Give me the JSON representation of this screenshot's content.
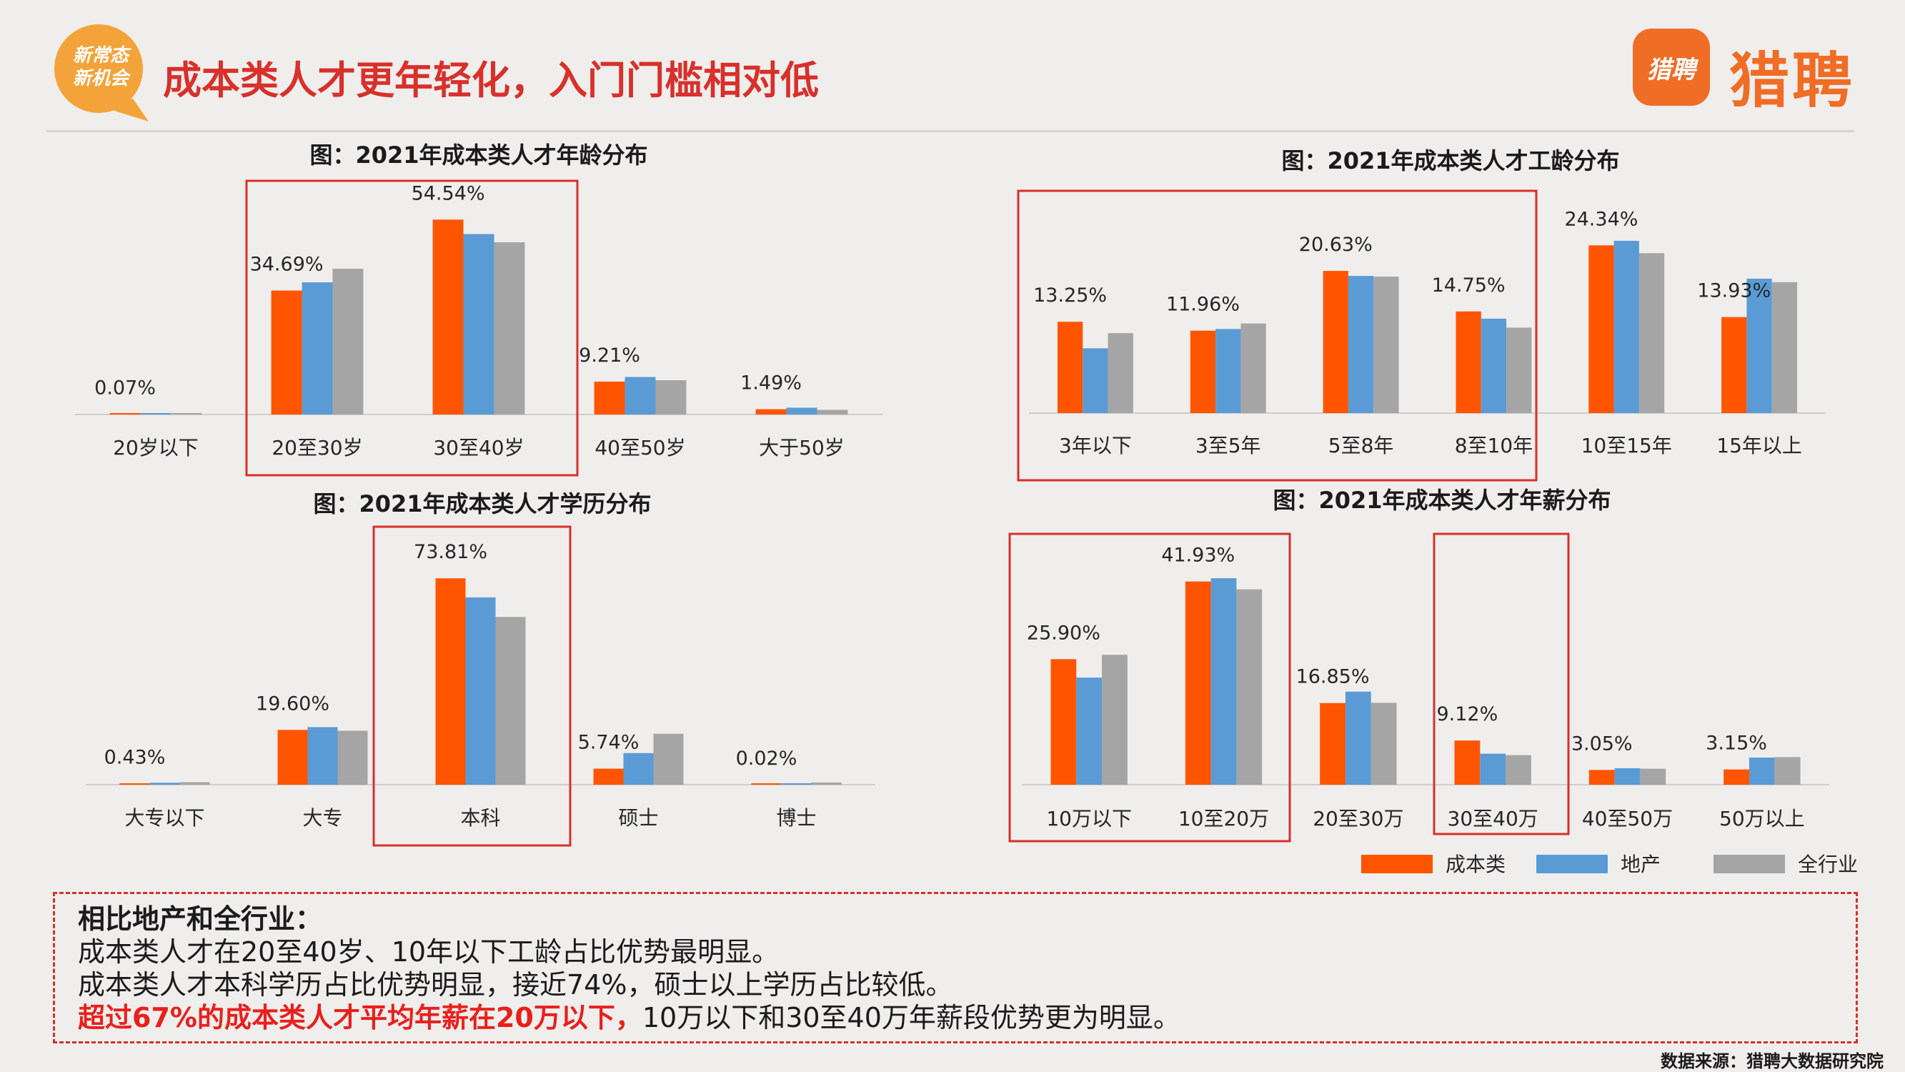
{
  "badge": {
    "line1": "新常态",
    "line2": "新机会"
  },
  "header": {
    "title": "成本类人才更年轻化，入门门槛相对低"
  },
  "logo": {
    "icon_text": "猎聘",
    "text": "猎聘"
  },
  "colors": {
    "cost": "#ff5500",
    "realestate": "#5b9bd5",
    "all": "#a5a5a5",
    "highlight": "#d8302b"
  },
  "legend": {
    "items": [
      "成本类",
      "地产",
      "全行业"
    ]
  },
  "chart_data": [
    {
      "type": "bar",
      "title": "图：2021年成本类人才年龄分布",
      "categories": [
        "20岁以下",
        "20至30岁",
        "30至40岁",
        "40至50岁",
        "大于50岁"
      ],
      "series": [
        {
          "name": "成本类",
          "values": [
            0.07,
            34.69,
            54.54,
            9.21,
            1.49
          ]
        },
        {
          "name": "地产",
          "values": [
            0.05,
            37.0,
            50.5,
            10.5,
            1.9
          ]
        },
        {
          "name": "全行业",
          "values": [
            0.3,
            40.8,
            48.2,
            9.6,
            1.3
          ]
        }
      ],
      "labels": [
        "0.07%",
        "34.69%",
        "54.54%",
        "9.21%",
        "1.49%"
      ],
      "ylim": [
        0,
        58
      ]
    },
    {
      "type": "bar",
      "title": "图：2021年成本类人才工龄分布",
      "categories": [
        "3年以下",
        "3至5年",
        "5至8年",
        "8至10年",
        "10至15年",
        "15年以上"
      ],
      "series": [
        {
          "name": "成本类",
          "values": [
            13.25,
            11.96,
            20.63,
            14.75,
            24.34,
            13.93
          ]
        },
        {
          "name": "地产",
          "values": [
            9.4,
            12.2,
            19.9,
            13.7,
            25.0,
            19.5
          ]
        },
        {
          "name": "全行业",
          "values": [
            11.6,
            13.0,
            19.8,
            12.4,
            23.2,
            19.0
          ]
        }
      ],
      "labels": [
        "13.25%",
        "11.96%",
        "20.63%",
        "14.75%",
        "24.34%",
        "13.93%"
      ],
      "ylim": [
        0,
        28
      ]
    },
    {
      "type": "bar",
      "title": "图：2021年成本类人才学历分布",
      "categories": [
        "大专以下",
        "大专",
        "本科",
        "硕士",
        "博士"
      ],
      "series": [
        {
          "name": "成本类",
          "values": [
            0.43,
            19.6,
            73.81,
            5.74,
            0.02
          ]
        },
        {
          "name": "地产",
          "values": [
            0.7,
            20.6,
            67.0,
            11.3,
            0.1
          ]
        },
        {
          "name": "全行业",
          "values": [
            0.9,
            19.3,
            60.0,
            18.2,
            0.8
          ]
        }
      ],
      "labels": [
        "0.43%",
        "19.60%",
        "73.81%",
        "5.74%",
        "0.02%"
      ],
      "ylim": [
        0,
        80
      ]
    },
    {
      "type": "bar",
      "title": "图：2021年成本类人才年薪分布",
      "categories": [
        "10万以下",
        "10至20万",
        "20至30万",
        "30至40万",
        "40至50万",
        "50万以上"
      ],
      "series": [
        {
          "name": "成本类",
          "values": [
            25.9,
            41.93,
            16.85,
            9.12,
            3.05,
            3.15
          ]
        },
        {
          "name": "地产",
          "values": [
            22.1,
            42.6,
            19.2,
            6.4,
            3.4,
            5.6
          ]
        },
        {
          "name": "全行业",
          "values": [
            26.8,
            40.3,
            16.9,
            6.1,
            3.3,
            5.7
          ]
        }
      ],
      "labels": [
        "25.90%",
        "41.93%",
        "16.85%",
        "9.12%",
        "3.05%",
        "3.15%"
      ],
      "ylim": [
        0,
        46
      ]
    }
  ],
  "summary": {
    "heading": "相比地产和全行业：",
    "line1": "成本类人才在20至40岁、10年以下工龄占比优势最明显。",
    "line2": "成本类人才本科学历占比优势明显，接近74%，硕士以上学历占比较低。",
    "line3_highlight": "超过67%的成本类人才平均年薪在20万以下，",
    "line3_rest": "10万以下和30至40万年薪段优势更为明显。"
  },
  "source": "数据来源：猎聘大数据研究院"
}
